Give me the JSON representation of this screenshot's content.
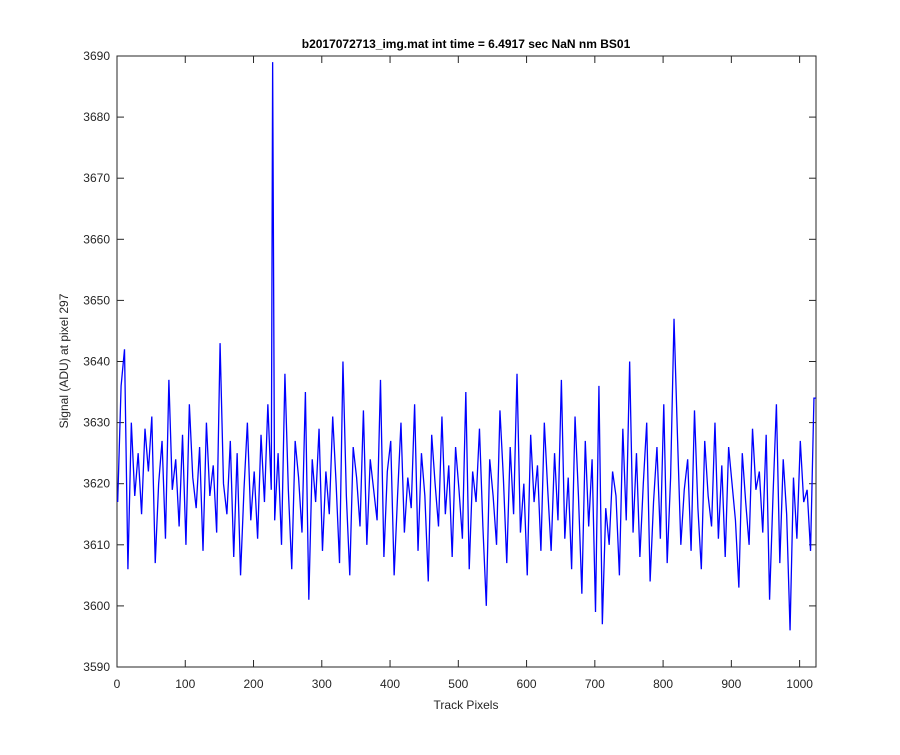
{
  "chart_data": {
    "type": "line",
    "title": "b2017072713_img.mat int time = 6.4917 sec  NaN nm BS01",
    "x_label": "Track Pixels",
    "y_label": "Signal (ADU) at pixel 297",
    "xlim": [
      0,
      1024
    ],
    "xticks": [
      0,
      100,
      200,
      300,
      400,
      500,
      600,
      700,
      800,
      900,
      1000
    ],
    "ylim": [
      3590,
      3690
    ],
    "yticks": [
      3590,
      3600,
      3610,
      3620,
      3630,
      3640,
      3650,
      3660,
      3670,
      3680,
      3690
    ],
    "grid": false,
    "series": [
      {
        "color": "#0000ff",
        "x": [
          1,
          6,
          11,
          16,
          21,
          26,
          31,
          36,
          41,
          46,
          51,
          56,
          61,
          66,
          71,
          76,
          81,
          86,
          91,
          96,
          101,
          106,
          111,
          116,
          121,
          126,
          131,
          136,
          141,
          146,
          151,
          156,
          161,
          166,
          171,
          176,
          181,
          186,
          191,
          196,
          201,
          206,
          211,
          216,
          221,
          226,
          228,
          231,
          236,
          241,
          246,
          251,
          256,
          261,
          266,
          271,
          276,
          281,
          286,
          291,
          296,
          301,
          306,
          311,
          316,
          321,
          326,
          331,
          336,
          341,
          346,
          351,
          356,
          361,
          366,
          371,
          376,
          381,
          386,
          391,
          396,
          401,
          406,
          411,
          416,
          421,
          426,
          431,
          436,
          441,
          446,
          451,
          456,
          461,
          466,
          471,
          476,
          481,
          486,
          491,
          496,
          501,
          506,
          511,
          516,
          521,
          526,
          531,
          536,
          541,
          546,
          551,
          556,
          561,
          566,
          571,
          576,
          581,
          586,
          591,
          596,
          601,
          606,
          611,
          616,
          621,
          626,
          631,
          636,
          641,
          646,
          651,
          656,
          661,
          666,
          671,
          676,
          681,
          686,
          691,
          696,
          701,
          706,
          711,
          716,
          721,
          726,
          731,
          736,
          741,
          746,
          751,
          756,
          761,
          766,
          771,
          776,
          781,
          786,
          791,
          796,
          801,
          806,
          811,
          816,
          821,
          826,
          831,
          836,
          841,
          846,
          851,
          856,
          861,
          866,
          871,
          876,
          881,
          886,
          891,
          896,
          901,
          906,
          911,
          916,
          921,
          926,
          931,
          936,
          941,
          946,
          951,
          956,
          961,
          966,
          971,
          976,
          981,
          986,
          991,
          996,
          1001,
          1006,
          1011,
          1016,
          1021,
          1024
        ],
        "values": [
          3617,
          3636,
          3642,
          3606,
          3630,
          3618,
          3625,
          3615,
          3629,
          3622,
          3631,
          3607,
          3620,
          3627,
          3611,
          3637,
          3619,
          3624,
          3613,
          3628,
          3610,
          3633,
          3621,
          3616,
          3626,
          3609,
          3630,
          3618,
          3623,
          3612,
          3643,
          3620,
          3615,
          3627,
          3608,
          3625,
          3605,
          3619,
          3630,
          3614,
          3622,
          3611,
          3628,
          3617,
          3633,
          3619,
          3689,
          3614,
          3625,
          3610,
          3638,
          3619,
          3606,
          3627,
          3621,
          3612,
          3635,
          3601,
          3624,
          3617,
          3629,
          3609,
          3622,
          3615,
          3631,
          3620,
          3607,
          3640,
          3618,
          3605,
          3626,
          3621,
          3613,
          3632,
          3610,
          3624,
          3619,
          3614,
          3637,
          3608,
          3622,
          3627,
          3605,
          3618,
          3630,
          3612,
          3621,
          3616,
          3633,
          3609,
          3625,
          3618,
          3604,
          3628,
          3620,
          3613,
          3631,
          3615,
          3623,
          3608,
          3626,
          3619,
          3611,
          3635,
          3606,
          3622,
          3617,
          3629,
          3613,
          3600,
          3624,
          3618,
          3610,
          3632,
          3621,
          3607,
          3626,
          3615,
          3638,
          3612,
          3620,
          3605,
          3628,
          3617,
          3623,
          3609,
          3630,
          3619,
          3609,
          3625,
          3614,
          3637,
          3611,
          3621,
          3606,
          3631,
          3618,
          3602,
          3627,
          3613,
          3624,
          3599,
          3636,
          3597,
          3616,
          3610,
          3622,
          3618,
          3605,
          3629,
          3614,
          3640,
          3612,
          3625,
          3608,
          3620,
          3630,
          3604,
          3617,
          3626,
          3611,
          3633,
          3607,
          3621,
          3647,
          3628,
          3610,
          3619,
          3624,
          3609,
          3632,
          3616,
          3606,
          3627,
          3618,
          3613,
          3630,
          3611,
          3623,
          3608,
          3626,
          3620,
          3614,
          3603,
          3625,
          3617,
          3610,
          3629,
          3619,
          3622,
          3612,
          3628,
          3601,
          3618,
          3633,
          3607,
          3624,
          3615,
          3596,
          3621,
          3611,
          3627,
          3617,
          3619,
          3609,
          3634,
          3634
        ]
      }
    ]
  }
}
